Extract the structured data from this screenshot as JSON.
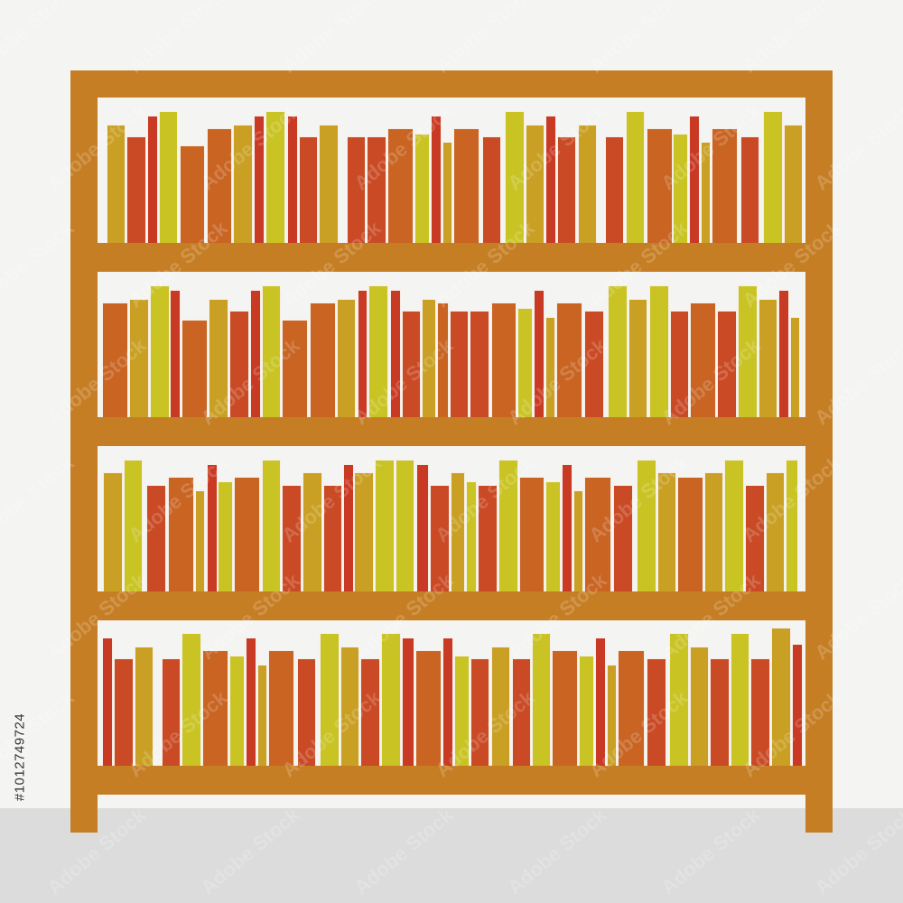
{
  "image": {
    "watermark": "Adobe Stock",
    "stock_id": "#1012749724",
    "palette": {
      "background": "#F4F4F2",
      "floor": "#DCDCDC",
      "frame": "#C67E24",
      "mustard": "#C9A024",
      "orange_red": "#C94A25",
      "red": "#C93A24",
      "yellow_green": "#C9C424",
      "orange": "#C96423"
    }
  }
}
